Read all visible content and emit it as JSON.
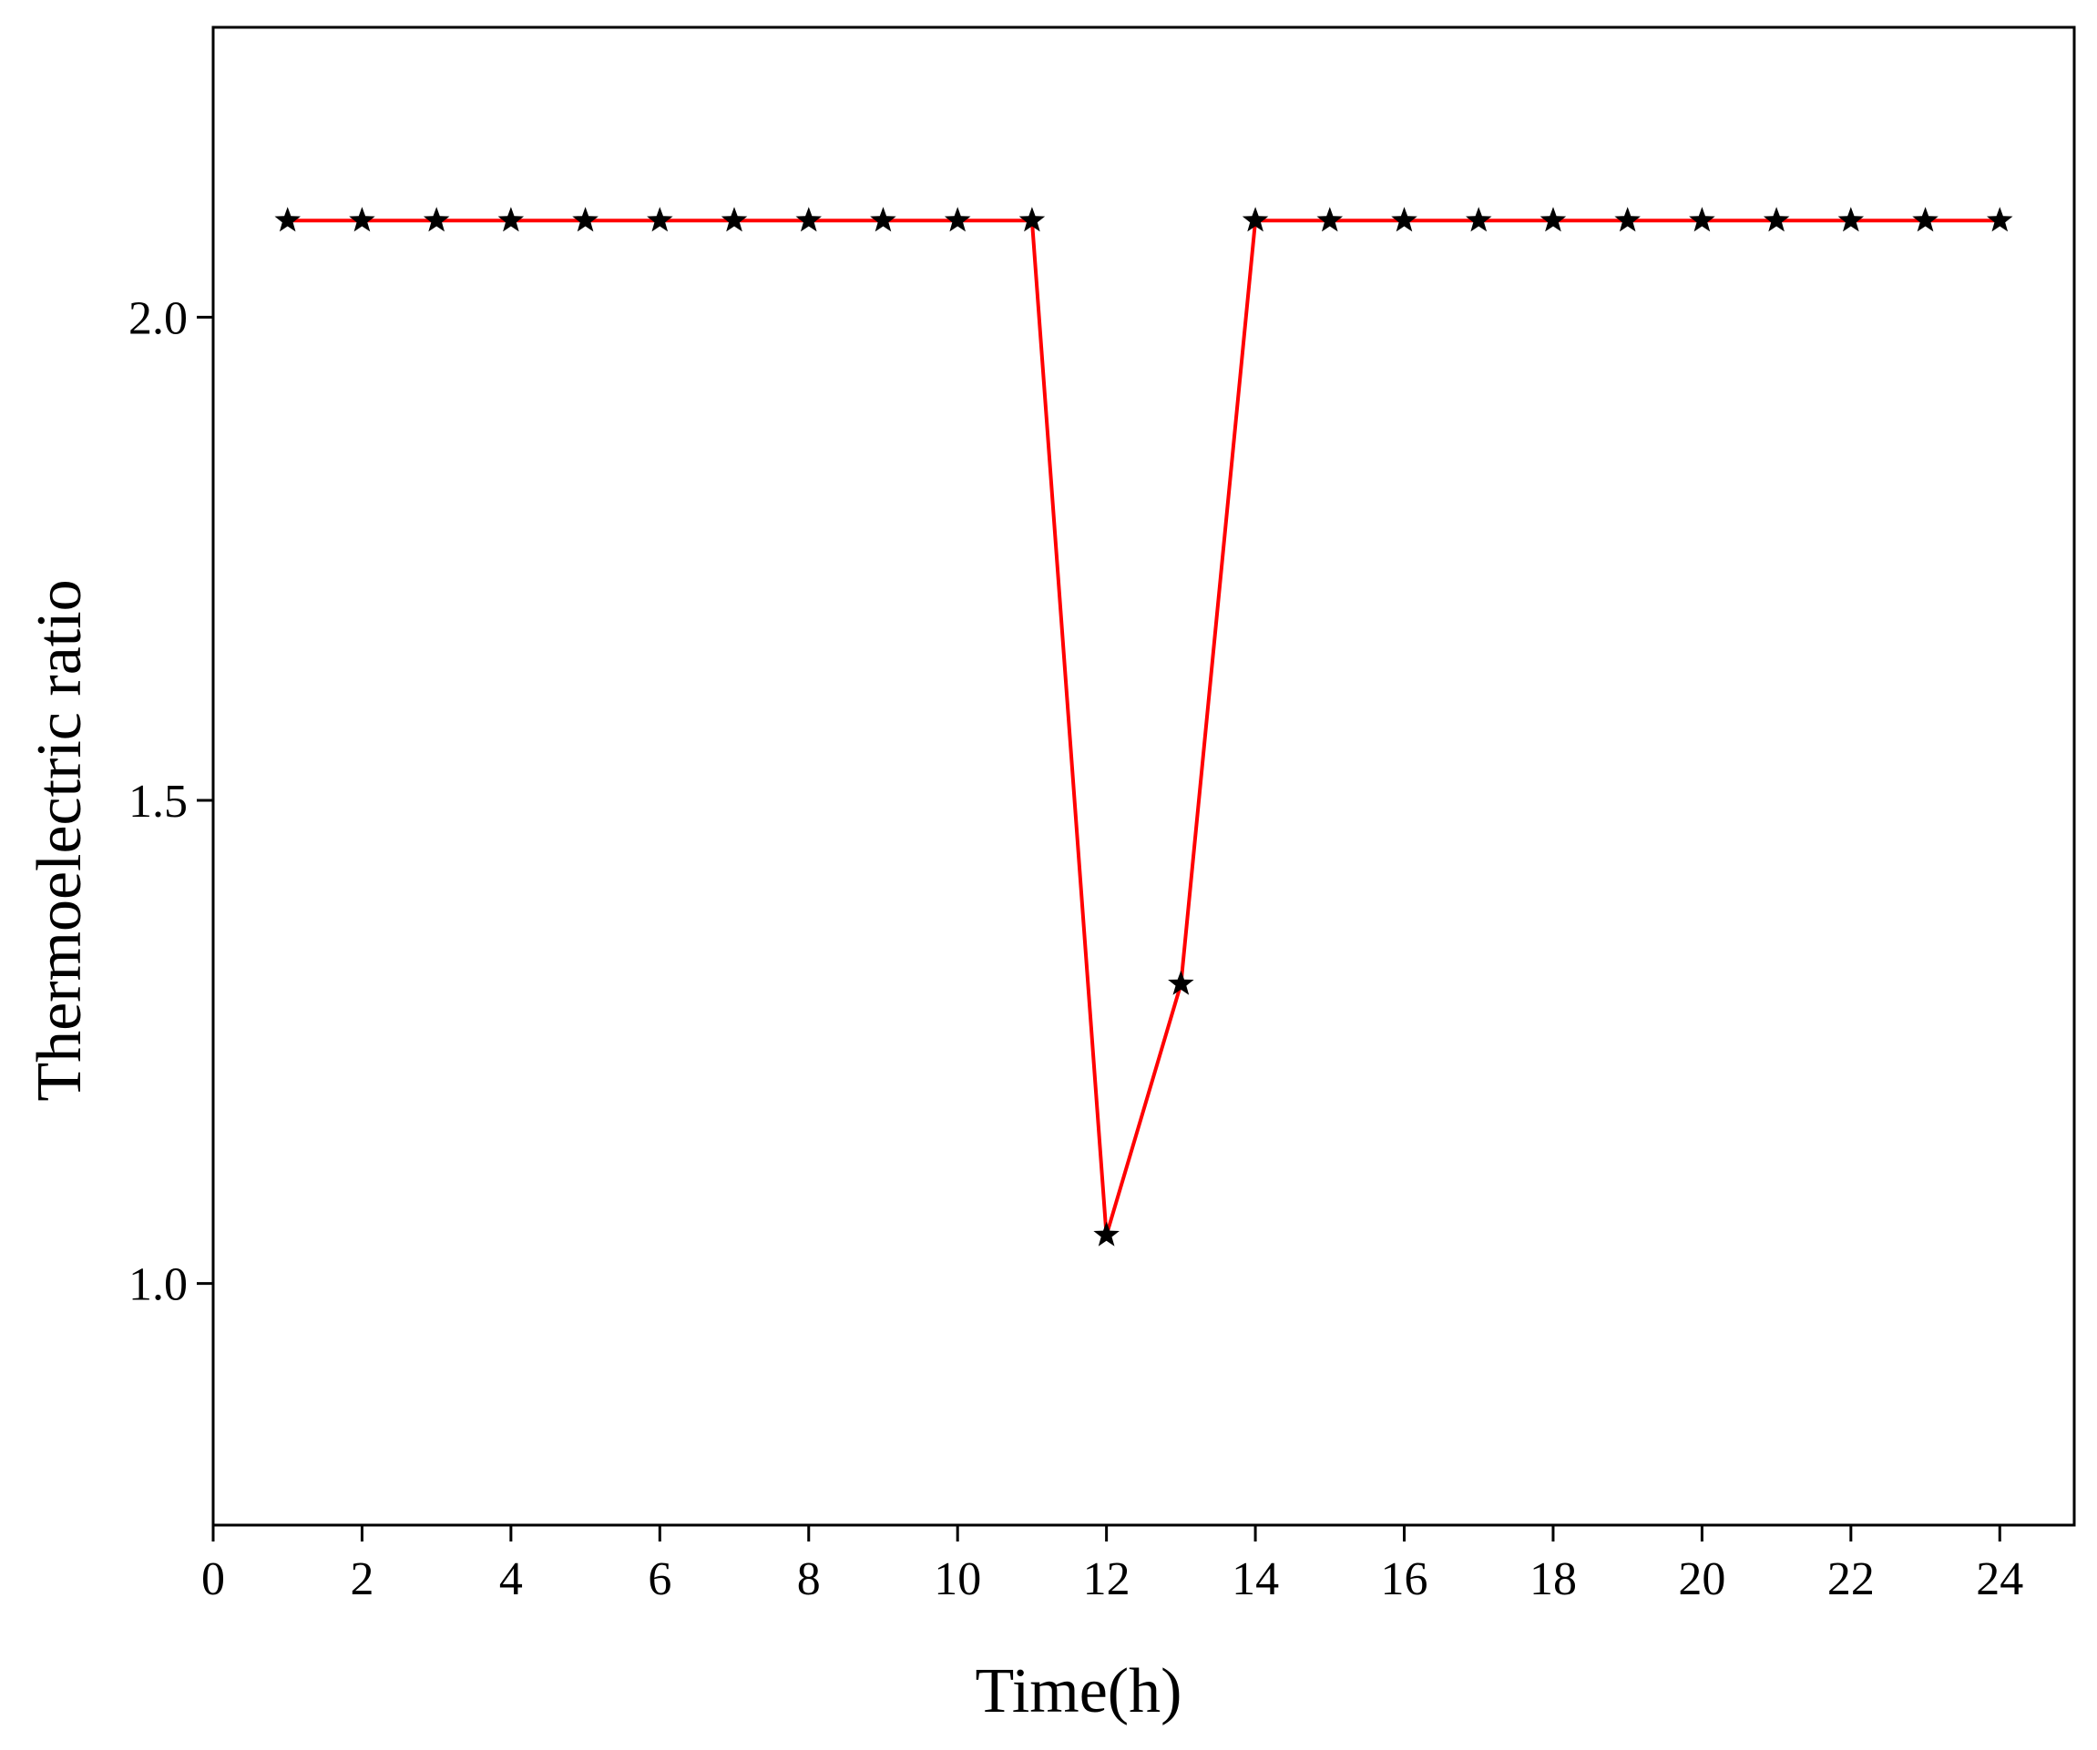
{
  "chart_data": {
    "type": "line",
    "title": "",
    "xlabel": "Time(h)",
    "ylabel": "Thermoelectric ratio",
    "xlim": [
      0,
      25
    ],
    "ylim": [
      0.75,
      2.3
    ],
    "x_ticks": [
      0,
      2,
      4,
      6,
      8,
      10,
      12,
      14,
      16,
      18,
      20,
      22,
      24
    ],
    "x_tick_labels": [
      "0",
      "2",
      "4",
      "6",
      "8",
      "10",
      "12",
      "14",
      "16",
      "18",
      "20",
      "22",
      "24"
    ],
    "y_ticks": [
      1.0,
      1.5,
      2.0
    ],
    "y_tick_labels": [
      "1.0",
      "1.5",
      "2.0"
    ],
    "grid": false,
    "legend": "none",
    "series": [
      {
        "color": "#ff0000",
        "marker": "star",
        "marker_color": "#000000",
        "x": [
          1,
          2,
          3,
          4,
          5,
          6,
          7,
          8,
          9,
          10,
          11,
          12,
          13,
          14,
          15,
          16,
          17,
          18,
          19,
          20,
          21,
          22,
          23,
          24
        ],
        "y": [
          2.1,
          2.1,
          2.1,
          2.1,
          2.1,
          2.1,
          2.1,
          2.1,
          2.1,
          2.1,
          2.1,
          1.05,
          1.31,
          2.1,
          2.1,
          2.1,
          2.1,
          2.1,
          2.1,
          2.1,
          2.1,
          2.1,
          2.1,
          2.1
        ]
      }
    ]
  }
}
